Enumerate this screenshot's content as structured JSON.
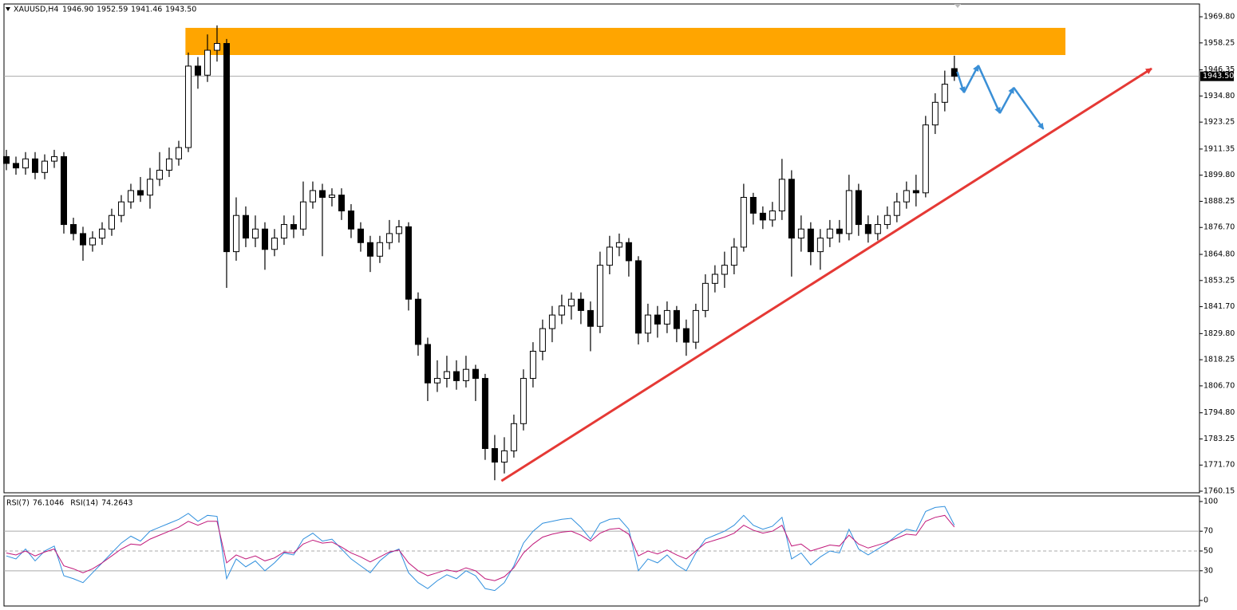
{
  "chart_data": [
    {
      "type": "candlestick",
      "title": "XAUUSD,H4",
      "ohlc_labels": [
        "1946.90",
        "1952.59",
        "1941.46",
        "1943.50"
      ],
      "up_color": "#ffffff",
      "down_color": "#000000",
      "grid": false,
      "xlim": [
        -0.25,
        124.6
      ],
      "ylim": [
        1759.45,
        1975.45
      ],
      "yticks": [
        {
          "value": 1969.8,
          "label": "1969.80"
        },
        {
          "value": 1958.25,
          "label": "1958.25"
        },
        {
          "value": 1946.35,
          "label": "1946.35"
        },
        {
          "value": 1934.8,
          "label": "1934.80"
        },
        {
          "value": 1923.25,
          "label": "1923.25"
        },
        {
          "value": 1911.35,
          "label": "1911.35"
        },
        {
          "value": 1899.8,
          "label": "1899.80"
        },
        {
          "value": 1888.25,
          "label": "1888.25"
        },
        {
          "value": 1876.7,
          "label": "1876.70"
        },
        {
          "value": 1864.8,
          "label": "1864.80"
        },
        {
          "value": 1853.25,
          "label": "1853.25"
        },
        {
          "value": 1841.7,
          "label": "1841.70"
        },
        {
          "value": 1829.8,
          "label": "1829.80"
        },
        {
          "value": 1818.25,
          "label": "1818.25"
        },
        {
          "value": 1806.7,
          "label": "1806.70"
        },
        {
          "value": 1794.8,
          "label": "1794.80"
        },
        {
          "value": 1783.25,
          "label": "1783.25"
        },
        {
          "value": 1771.7,
          "label": "1771.70"
        },
        {
          "value": 1760.15,
          "label": "1760.15"
        }
      ],
      "last_price": {
        "value": 1943.5,
        "label": "1943.50"
      },
      "open": [
        1908,
        1905,
        1903,
        1907,
        1901,
        1906,
        1908,
        1878,
        1874,
        1869,
        1872,
        1876,
        1882,
        1888,
        1893,
        1891,
        1898,
        1902,
        1907,
        1912,
        1948,
        1944,
        1955,
        1958,
        1866,
        1882,
        1872,
        1876,
        1867,
        1872,
        1878,
        1876,
        1888,
        1893,
        1890,
        1891,
        1884,
        1876,
        1870,
        1864,
        1870,
        1874,
        1877,
        1845,
        1825,
        1808,
        1810,
        1813,
        1809,
        1814,
        1810,
        1779,
        1773,
        1778,
        1790,
        1810,
        1822,
        1832,
        1838,
        1842,
        1845,
        1840,
        1833,
        1860,
        1868,
        1870,
        1862,
        1830,
        1838,
        1834,
        1840,
        1832,
        1826,
        1840,
        1852,
        1856,
        1860,
        1868,
        1890,
        1883,
        1880,
        1884,
        1898,
        1872,
        1876,
        1866,
        1872,
        1876,
        1874,
        1893,
        1878,
        1874,
        1878,
        1882,
        1888,
        1893,
        1892,
        1922,
        1932,
        1946.9
      ],
      "high": [
        1911,
        1908,
        1910,
        1910,
        1909,
        1911,
        1910,
        1881,
        1877,
        1875,
        1879,
        1885,
        1891,
        1896,
        1899,
        1903,
        1910,
        1912,
        1915,
        1954,
        1952,
        1962,
        1966,
        1960,
        1890,
        1886,
        1882,
        1879,
        1876,
        1882,
        1882,
        1897,
        1897,
        1896,
        1894,
        1894,
        1887,
        1879,
        1873,
        1873,
        1880,
        1880,
        1879,
        1848,
        1828,
        1818,
        1820,
        1818,
        1820,
        1816,
        1812,
        1785,
        1784,
        1794,
        1814,
        1826,
        1836,
        1842,
        1847,
        1848,
        1848,
        1844,
        1866,
        1873,
        1874,
        1872,
        1864,
        1843,
        1842,
        1844,
        1842,
        1836,
        1843,
        1856,
        1860,
        1866,
        1872,
        1896,
        1892,
        1886,
        1888,
        1907,
        1902,
        1882,
        1879,
        1876,
        1880,
        1880,
        1900,
        1896,
        1882,
        1882,
        1886,
        1892,
        1897,
        1900,
        1926,
        1936,
        1946,
        1952.59
      ],
      "low": [
        1902,
        1900,
        1900,
        1898,
        1898,
        1903,
        1874,
        1871,
        1862,
        1866,
        1869,
        1873,
        1879,
        1885,
        1888,
        1885,
        1895,
        1899,
        1904,
        1910,
        1938,
        1941,
        1950,
        1850,
        1862,
        1868,
        1868,
        1858,
        1864,
        1869,
        1872,
        1873,
        1885,
        1864,
        1886,
        1880,
        1872,
        1866,
        1857,
        1861,
        1867,
        1870,
        1840,
        1820,
        1800,
        1804,
        1806,
        1805,
        1806,
        1800,
        1774,
        1765,
        1768,
        1775,
        1787,
        1806,
        1818,
        1826,
        1834,
        1836,
        1834,
        1822,
        1830,
        1856,
        1864,
        1855,
        1825,
        1826,
        1828,
        1830,
        1826,
        1820,
        1823,
        1837,
        1848,
        1850,
        1856,
        1866,
        1878,
        1876,
        1877,
        1880,
        1855,
        1866,
        1860,
        1858,
        1868,
        1870,
        1871,
        1873,
        1870,
        1871,
        1876,
        1879,
        1885,
        1886,
        1890,
        1918,
        1928,
        1941.46
      ],
      "close": [
        1905,
        1903,
        1907,
        1901,
        1906,
        1908,
        1878,
        1874,
        1869,
        1872,
        1876,
        1882,
        1888,
        1893,
        1891,
        1898,
        1902,
        1907,
        1912,
        1948,
        1944,
        1955,
        1958,
        1866,
        1882,
        1872,
        1876,
        1867,
        1872,
        1878,
        1876,
        1888,
        1893,
        1890,
        1891,
        1884,
        1876,
        1870,
        1864,
        1870,
        1874,
        1877,
        1845,
        1825,
        1808,
        1810,
        1813,
        1809,
        1814,
        1810,
        1779,
        1773,
        1778,
        1790,
        1810,
        1822,
        1832,
        1838,
        1842,
        1845,
        1840,
        1833,
        1860,
        1868,
        1870,
        1862,
        1830,
        1838,
        1834,
        1840,
        1832,
        1826,
        1840,
        1852,
        1856,
        1860,
        1868,
        1890,
        1883,
        1880,
        1884,
        1898,
        1872,
        1876,
        1866,
        1872,
        1876,
        1874,
        1893,
        1878,
        1874,
        1878,
        1882,
        1888,
        1893,
        1892,
        1922,
        1932,
        1940,
        1943.5
      ],
      "zone": {
        "x": [
          18.7,
          110.6
        ],
        "y": [
          1952.9,
          1964.9
        ],
        "color": "#ffa500"
      },
      "trend_line": {
        "x": [
          51.7,
          119.6
        ],
        "y": [
          1764.7,
          1946.9
        ],
        "color": "#e53935"
      },
      "forecast": {
        "x": [
          99.3,
          100,
          101.5,
          103.75,
          105.2,
          108.3
        ],
        "y": [
          1945.5,
          1936.3,
          1948.3,
          1927.2,
          1938.5,
          1920.2
        ],
        "color": "#3a8fd6"
      }
    },
    {
      "type": "line",
      "xlim": [
        -0.25,
        124.6
      ],
      "ylim": [
        -5.6,
        105.6
      ],
      "yticks": [
        0,
        30,
        50,
        70,
        100
      ],
      "levels": [
        30,
        50,
        70
      ],
      "series": [
        {
          "name": "RSI(7)",
          "color": "#2f8fdd",
          "values": [
            45,
            42,
            52,
            40,
            50,
            55,
            25,
            22,
            18,
            28,
            38,
            48,
            58,
            65,
            60,
            70,
            74,
            78,
            82,
            88,
            80,
            86,
            85,
            22,
            42,
            34,
            40,
            30,
            38,
            48,
            46,
            62,
            68,
            60,
            62,
            52,
            42,
            35,
            28,
            40,
            48,
            52,
            28,
            18,
            12,
            20,
            26,
            22,
            30,
            25,
            12,
            10,
            18,
            35,
            58,
            70,
            78,
            80,
            82,
            83,
            74,
            62,
            78,
            82,
            83,
            72,
            30,
            42,
            38,
            46,
            36,
            30,
            48,
            62,
            66,
            70,
            76,
            86,
            76,
            72,
            75,
            84,
            42,
            48,
            36,
            44,
            50,
            48,
            72,
            52,
            46,
            52,
            58,
            66,
            72,
            70,
            90,
            94,
            95,
            76.1046
          ]
        },
        {
          "name": "RSI(14)",
          "color": "#c0187a",
          "values": [
            48,
            46,
            50,
            45,
            49,
            52,
            35,
            32,
            28,
            32,
            38,
            45,
            52,
            57,
            56,
            62,
            66,
            70,
            74,
            80,
            76,
            80,
            80,
            38,
            46,
            42,
            45,
            40,
            43,
            49,
            48,
            57,
            61,
            58,
            59,
            54,
            48,
            44,
            39,
            44,
            49,
            51,
            38,
            30,
            25,
            28,
            31,
            29,
            33,
            30,
            22,
            20,
            24,
            33,
            48,
            57,
            64,
            67,
            69,
            70,
            66,
            60,
            68,
            72,
            73,
            67,
            45,
            50,
            47,
            51,
            46,
            42,
            50,
            58,
            61,
            64,
            68,
            76,
            71,
            68,
            70,
            76,
            55,
            57,
            50,
            53,
            56,
            55,
            66,
            57,
            53,
            56,
            59,
            63,
            67,
            66,
            80,
            84,
            86,
            74.2643
          ]
        }
      ]
    }
  ]
}
